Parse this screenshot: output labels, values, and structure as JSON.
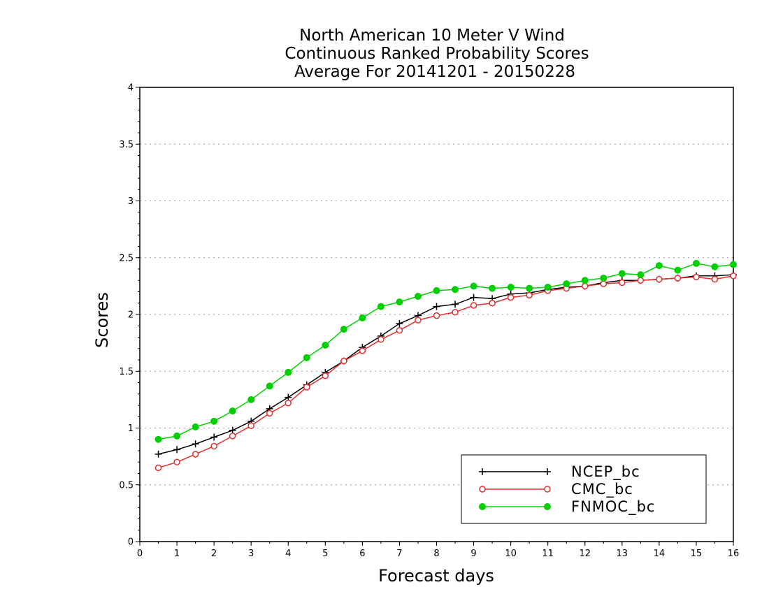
{
  "chart_data": {
    "type": "line",
    "title": [
      "North American 10 Meter V Wind",
      "Continuous Ranked Probability Scores",
      "Average For 20141201 - 20150228"
    ],
    "xlabel": "Forecast days",
    "ylabel": "Scores",
    "xlim": [
      0,
      16
    ],
    "ylim": [
      0,
      4
    ],
    "x_ticks": [
      0,
      1,
      2,
      3,
      4,
      5,
      6,
      7,
      8,
      9,
      10,
      11,
      12,
      13,
      14,
      15,
      16
    ],
    "y_ticks": [
      0,
      0.5,
      1,
      1.5,
      2,
      2.5,
      3,
      3.5,
      4
    ],
    "y_tick_labels": [
      "0",
      "0.5",
      "1",
      "1.5",
      "2",
      "2.5",
      "3",
      "3.5",
      "4"
    ],
    "grid": "horizontal dotted",
    "legend_position": "bottom-right",
    "x": [
      0.5,
      1,
      1.5,
      2,
      2.5,
      3,
      3.5,
      4,
      4.5,
      5,
      5.5,
      6,
      6.5,
      7,
      7.5,
      8,
      8.5,
      9,
      9.5,
      10,
      10.5,
      11,
      11.5,
      12,
      12.5,
      13,
      13.5,
      14,
      14.5,
      15,
      15.5,
      16
    ],
    "series": [
      {
        "name": "NCEP_bc",
        "color": "#000000",
        "marker": "plus",
        "values": [
          0.77,
          0.81,
          0.86,
          0.92,
          0.98,
          1.06,
          1.17,
          1.27,
          1.38,
          1.49,
          1.59,
          1.71,
          1.81,
          1.92,
          1.99,
          2.07,
          2.09,
          2.15,
          2.14,
          2.18,
          2.19,
          2.22,
          2.24,
          2.25,
          2.28,
          2.3,
          2.3,
          2.31,
          2.32,
          2.34,
          2.34,
          2.35
        ]
      },
      {
        "name": "CMC_bc",
        "color": "#e03030",
        "marker": "open-circle",
        "values": [
          0.65,
          0.7,
          0.77,
          0.84,
          0.93,
          1.02,
          1.13,
          1.22,
          1.36,
          1.46,
          1.59,
          1.68,
          1.78,
          1.86,
          1.95,
          1.99,
          2.02,
          2.08,
          2.1,
          2.15,
          2.17,
          2.21,
          2.23,
          2.25,
          2.27,
          2.28,
          2.3,
          2.31,
          2.32,
          2.33,
          2.31,
          2.34
        ]
      },
      {
        "name": "FNMOC_bc",
        "color": "#00d000",
        "marker": "filled-circle",
        "values": [
          0.9,
          0.93,
          1.01,
          1.06,
          1.15,
          1.25,
          1.37,
          1.49,
          1.62,
          1.73,
          1.87,
          1.97,
          2.07,
          2.11,
          2.16,
          2.21,
          2.22,
          2.25,
          2.23,
          2.24,
          2.23,
          2.24,
          2.27,
          2.3,
          2.32,
          2.36,
          2.35,
          2.43,
          2.39,
          2.45,
          2.42,
          2.44
        ]
      }
    ]
  }
}
